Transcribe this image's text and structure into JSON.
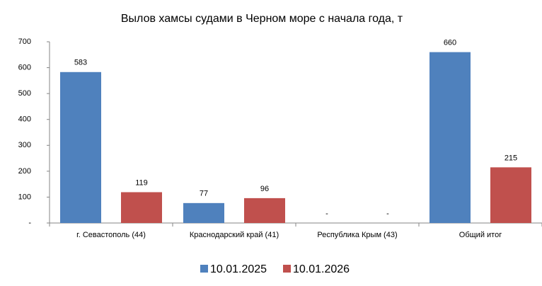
{
  "chart_data": {
    "type": "bar",
    "title": "Вылов хамсы судами в Черном море с начала  года, т",
    "categories": [
      "г. Севастополь (44)",
      "Краснодарский край (41)",
      "Республика Крым (43)",
      "Общий итог"
    ],
    "series": [
      {
        "name": "10.01.2025",
        "color": "#4f81bd",
        "values": [
          583,
          77,
          0,
          660
        ],
        "value_labels": [
          "583",
          "77",
          "-",
          "660"
        ]
      },
      {
        "name": "10.01.2026",
        "color": "#c0504d",
        "values": [
          119,
          96,
          0,
          215
        ],
        "value_labels": [
          "119",
          "96",
          "-",
          "215"
        ]
      }
    ],
    "ylim": [
      0,
      700
    ],
    "yticks": [
      {
        "value": 0,
        "label": "-"
      },
      100,
      200,
      300,
      400,
      500,
      600,
      700
    ],
    "grid": false,
    "legend": "bottom"
  }
}
